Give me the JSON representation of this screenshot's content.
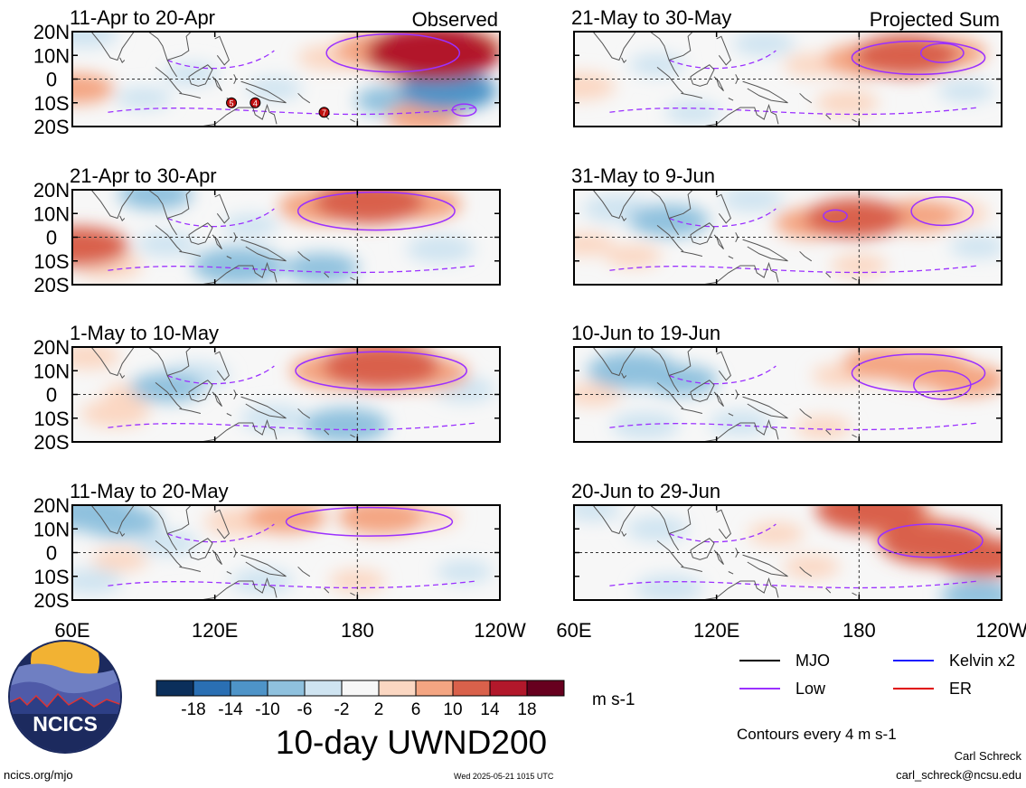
{
  "chart_data": {
    "type": "heatmap",
    "variable_title": "10-day UWND200",
    "units": "m s-1",
    "contour_note": "Contours every 4 m s-1",
    "column_labels": [
      "Observed",
      "Projected Sum"
    ],
    "x_ticks": [
      "60E",
      "120E",
      "180",
      "120W"
    ],
    "x_tick_values": [
      60,
      120,
      180,
      240
    ],
    "y_ticks": [
      "20N",
      "10N",
      "0",
      "10S",
      "20S"
    ],
    "y_tick_values": [
      20,
      10,
      0,
      -10,
      -20
    ],
    "xlim": [
      60,
      240
    ],
    "ylim": [
      -20,
      20
    ],
    "colorbar_ticks": [
      "-18",
      "-14",
      "-10",
      "-6",
      "-2",
      "2",
      "6",
      "10",
      "14",
      "18"
    ],
    "colorbar_colors": [
      "#0b2f5b",
      "#2a6fb3",
      "#4e94c8",
      "#8fc1de",
      "#cfe4f1",
      "#f7f7f7",
      "#fbd7c2",
      "#f4a582",
      "#d9614b",
      "#b2182b",
      "#67001f"
    ],
    "legend": [
      {
        "label": "MJO",
        "color": "#000000"
      },
      {
        "label": "Kelvin x2",
        "color": "#1a1aff"
      },
      {
        "label": "Low",
        "color": "#9b30ff"
      },
      {
        "label": "ER",
        "color": "#e00000"
      }
    ],
    "panels": [
      {
        "title": "11-Apr to 20-Apr",
        "column": 0,
        "row": 0,
        "label": "Observed",
        "blobs": [
          {
            "lon": 212,
            "lat": 11,
            "value": 16
          },
          {
            "lon": 190,
            "lat": 12,
            "value": 9
          },
          {
            "lon": 225,
            "lat": 14,
            "value": 7
          },
          {
            "lon": 168,
            "lat": 9,
            "value": 4
          },
          {
            "lon": 200,
            "lat": 3,
            "value": 3
          },
          {
            "lon": 62,
            "lat": -4,
            "value": 6
          },
          {
            "lon": 218,
            "lat": -5,
            "value": -10
          },
          {
            "lon": 195,
            "lat": -9,
            "value": -6
          },
          {
            "lon": 110,
            "lat": 2,
            "value": -3
          },
          {
            "lon": 145,
            "lat": -4,
            "value": -3
          },
          {
            "lon": 65,
            "lat": 19,
            "value": -5
          },
          {
            "lon": 208,
            "lat": -16,
            "value": 6
          },
          {
            "lon": 90,
            "lat": -8,
            "value": -3
          }
        ],
        "low_rings": [
          {
            "lon": 195,
            "lat": 11,
            "w": 28,
            "h": 8
          },
          {
            "lon": 225,
            "lat": -13,
            "w": 5,
            "h": 2.5
          }
        ],
        "er_markers": [
          {
            "lon": 127,
            "lat": -10,
            "label": "5"
          },
          {
            "lon": 137,
            "lat": -10,
            "label": "4"
          },
          {
            "lon": 166,
            "lat": -14,
            "label": "7"
          }
        ]
      },
      {
        "title": "21-Apr to 30-Apr",
        "column": 0,
        "row": 1,
        "blobs": [
          {
            "lon": 185,
            "lat": 15,
            "value": 12
          },
          {
            "lon": 165,
            "lat": 13,
            "value": 8
          },
          {
            "lon": 207,
            "lat": 14,
            "value": 7
          },
          {
            "lon": 63,
            "lat": -4,
            "value": 10
          },
          {
            "lon": 75,
            "lat": -12,
            "value": 5
          },
          {
            "lon": 130,
            "lat": -12,
            "value": -9
          },
          {
            "lon": 165,
            "lat": -13,
            "value": -6
          },
          {
            "lon": 100,
            "lat": -3,
            "value": -4
          },
          {
            "lon": 95,
            "lat": 18,
            "value": -6
          },
          {
            "lon": 215,
            "lat": -5,
            "value": -5
          },
          {
            "lon": 135,
            "lat": 5,
            "value": -3
          }
        ],
        "low_rings": [
          {
            "lon": 188,
            "lat": 11,
            "w": 33,
            "h": 8
          }
        ]
      },
      {
        "title": "1-May to 10-May",
        "column": 0,
        "row": 2,
        "blobs": [
          {
            "lon": 190,
            "lat": 12,
            "value": 13
          },
          {
            "lon": 170,
            "lat": 10,
            "value": 8
          },
          {
            "lon": 210,
            "lat": 9,
            "value": 7
          },
          {
            "lon": 100,
            "lat": 3,
            "value": -6
          },
          {
            "lon": 112,
            "lat": 8,
            "value": -5
          },
          {
            "lon": 175,
            "lat": -13,
            "value": -8
          },
          {
            "lon": 145,
            "lat": -10,
            "value": -5
          },
          {
            "lon": 78,
            "lat": -8,
            "value": 5
          },
          {
            "lon": 67,
            "lat": 16,
            "value": 4
          },
          {
            "lon": 225,
            "lat": 2,
            "value": -4
          },
          {
            "lon": 85,
            "lat": 0,
            "value": 3
          }
        ],
        "low_rings": [
          {
            "lon": 190,
            "lat": 10,
            "w": 36,
            "h": 8
          }
        ]
      },
      {
        "title": "11-May to 20-May",
        "column": 0,
        "row": 3,
        "blobs": [
          {
            "lon": 190,
            "lat": 15,
            "value": 8
          },
          {
            "lon": 150,
            "lat": 15,
            "value": 7
          },
          {
            "lon": 130,
            "lat": 13,
            "value": 5
          },
          {
            "lon": 210,
            "lat": 15,
            "value": 4
          },
          {
            "lon": 68,
            "lat": 17,
            "value": -9
          },
          {
            "lon": 80,
            "lat": 13,
            "value": -7
          },
          {
            "lon": 100,
            "lat": 4,
            "value": -4
          },
          {
            "lon": 140,
            "lat": -12,
            "value": -4
          },
          {
            "lon": 68,
            "lat": -12,
            "value": -4
          },
          {
            "lon": 180,
            "lat": -12,
            "value": 3
          },
          {
            "lon": 225,
            "lat": -8,
            "value": -3
          },
          {
            "lon": 80,
            "lat": -3,
            "value": 3
          }
        ],
        "low_rings": [
          {
            "lon": 185,
            "lat": 13,
            "w": 35,
            "h": 6
          }
        ]
      },
      {
        "title": "21-May to 30-May",
        "column": 1,
        "row": 0,
        "label": "Projected Sum",
        "blobs": [
          {
            "lon": 200,
            "lat": 10,
            "value": 11
          },
          {
            "lon": 182,
            "lat": 8,
            "value": 7
          },
          {
            "lon": 218,
            "lat": 11,
            "value": 6
          },
          {
            "lon": 160,
            "lat": 6,
            "value": 3
          },
          {
            "lon": 63,
            "lat": -3,
            "value": 5
          },
          {
            "lon": 175,
            "lat": -10,
            "value": 4
          },
          {
            "lon": 140,
            "lat": 15,
            "value": -4
          },
          {
            "lon": 95,
            "lat": 6,
            "value": -3
          },
          {
            "lon": 110,
            "lat": -14,
            "value": -3
          },
          {
            "lon": 225,
            "lat": -5,
            "value": -3
          }
        ],
        "low_rings": [
          {
            "lon": 205,
            "lat": 9,
            "w": 28,
            "h": 7
          },
          {
            "lon": 215,
            "lat": 11,
            "w": 9,
            "h": 4
          }
        ]
      },
      {
        "title": "31-May to 9-Jun",
        "column": 1,
        "row": 1,
        "blobs": [
          {
            "lon": 178,
            "lat": 8,
            "value": 10
          },
          {
            "lon": 160,
            "lat": 6,
            "value": 6
          },
          {
            "lon": 205,
            "lat": 9,
            "value": 7
          },
          {
            "lon": 220,
            "lat": 10,
            "value": 5
          },
          {
            "lon": 100,
            "lat": 7,
            "value": -7
          },
          {
            "lon": 78,
            "lat": 12,
            "value": -5
          },
          {
            "lon": 135,
            "lat": 16,
            "value": -4
          },
          {
            "lon": 65,
            "lat": -3,
            "value": 3
          },
          {
            "lon": 85,
            "lat": -8,
            "value": 3
          },
          {
            "lon": 180,
            "lat": -12,
            "value": 3
          },
          {
            "lon": 230,
            "lat": -4,
            "value": -3
          }
        ],
        "low_rings": [
          {
            "lon": 215,
            "lat": 11,
            "w": 13,
            "h": 6
          },
          {
            "lon": 170,
            "lat": 9,
            "w": 5,
            "h": 2.5
          }
        ]
      },
      {
        "title": "10-Jun to 19-Jun",
        "column": 1,
        "row": 2,
        "blobs": [
          {
            "lon": 208,
            "lat": 11,
            "value": 9
          },
          {
            "lon": 190,
            "lat": 13,
            "value": 7
          },
          {
            "lon": 225,
            "lat": 6,
            "value": 7
          },
          {
            "lon": 85,
            "lat": 10,
            "value": -9
          },
          {
            "lon": 105,
            "lat": 6,
            "value": -6
          },
          {
            "lon": 90,
            "lat": -13,
            "value": -5
          },
          {
            "lon": 130,
            "lat": -12,
            "value": -4
          },
          {
            "lon": 172,
            "lat": 8,
            "value": 3
          },
          {
            "lon": 68,
            "lat": 0,
            "value": 3
          },
          {
            "lon": 165,
            "lat": -14,
            "value": 3
          }
        ],
        "low_rings": [
          {
            "lon": 205,
            "lat": 9,
            "w": 28,
            "h": 8
          },
          {
            "lon": 215,
            "lat": 4,
            "w": 12,
            "h": 6
          }
        ]
      },
      {
        "title": "20-Jun to 29-Jun",
        "column": 1,
        "row": 3,
        "blobs": [
          {
            "lon": 212,
            "lat": 4,
            "value": 12
          },
          {
            "lon": 232,
            "lat": -2,
            "value": 10
          },
          {
            "lon": 185,
            "lat": 18,
            "value": 12
          },
          {
            "lon": 200,
            "lat": 11,
            "value": 7
          },
          {
            "lon": 68,
            "lat": 18,
            "value": -3
          },
          {
            "lon": 95,
            "lat": 10,
            "value": -4
          },
          {
            "lon": 100,
            "lat": -15,
            "value": -5
          },
          {
            "lon": 230,
            "lat": -18,
            "value": -6
          },
          {
            "lon": 145,
            "lat": 8,
            "value": 3
          },
          {
            "lon": 160,
            "lat": -6,
            "value": 3
          }
        ],
        "low_rings": [
          {
            "lon": 210,
            "lat": 5,
            "w": 22,
            "h": 7
          }
        ]
      }
    ]
  },
  "branding": {
    "logo_text": "NCICS",
    "site": "ncics.org/mjo",
    "timestamp": "Wed 2025-05-21 1015 UTC",
    "author": "Carl Schreck",
    "email": "carl_schreck@ncsu.edu"
  }
}
